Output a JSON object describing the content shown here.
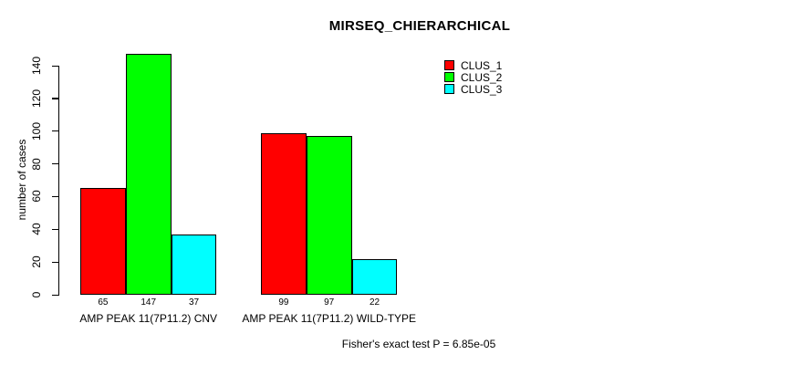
{
  "title": "MIRSEQ_CHIERARCHICAL",
  "footer": "Fisher's exact test P = 6.85e-05",
  "colors": {
    "background": "#FFFFFF",
    "axis": "#000000",
    "text": "#000000",
    "clus_1": "#FF0000",
    "clus_2": "#00FF00",
    "clus_3": "#00FFFF"
  },
  "legend": {
    "items": [
      {
        "label": "CLUS_1",
        "color": "#FF0000"
      },
      {
        "label": "CLUS_2",
        "color": "#00FF00"
      },
      {
        "label": "CLUS_3",
        "color": "#00FFFF"
      }
    ]
  },
  "chart_data": {
    "type": "bar",
    "title": "MIRSEQ_CHIERARCHICAL",
    "xlabel": "",
    "ylabel": "number of cases",
    "ylim": [
      0,
      140
    ],
    "yticks": [
      0,
      20,
      40,
      60,
      80,
      100,
      120,
      140
    ],
    "grid": false,
    "legend_position": "top-right",
    "bar_value_labels": true,
    "categories": [
      "AMP PEAK 11(7P11.2) CNV",
      "AMP PEAK 11(7P11.2) WILD-TYPE"
    ],
    "series": [
      {
        "name": "CLUS_1",
        "color": "#FF0000",
        "values": [
          65,
          99
        ]
      },
      {
        "name": "CLUS_2",
        "color": "#00FF00",
        "values": [
          147,
          97
        ]
      },
      {
        "name": "CLUS_3",
        "color": "#00FFFF",
        "values": [
          37,
          22
        ]
      }
    ],
    "annotation": "Fisher's exact test P = 6.85e-05"
  }
}
